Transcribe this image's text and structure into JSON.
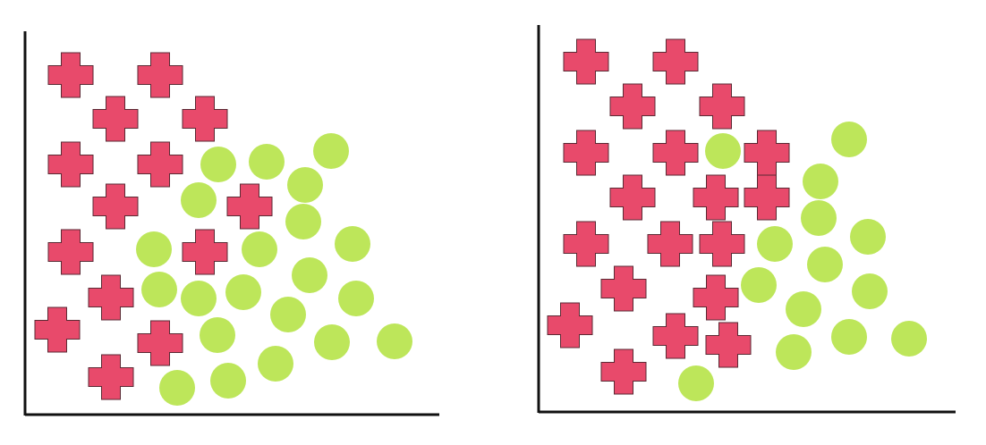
{
  "chart_data": [
    {
      "type": "scatter",
      "title": "",
      "xlabel": "",
      "ylabel": "",
      "grid": false,
      "legend": "none",
      "xlim": [
        0,
        460
      ],
      "ylim": [
        0,
        440
      ],
      "series": [
        {
          "marker": "cross",
          "color": "#e84a6b",
          "points": [
            [
              51,
              380
            ],
            [
              151,
              380
            ],
            [
              101,
              331
            ],
            [
              201,
              331
            ],
            [
              51,
              280
            ],
            [
              151,
              280
            ],
            [
              101,
              233
            ],
            [
              251,
              233
            ],
            [
              51,
              182
            ],
            [
              201,
              182
            ],
            [
              96,
              131
            ],
            [
              151,
              80
            ],
            [
              36,
              95
            ],
            [
              96,
              42
            ]
          ]
        },
        {
          "marker": "circle",
          "color": "#bde65a",
          "points": [
            [
              216,
              280
            ],
            [
              270,
              283
            ],
            [
              342,
              295
            ],
            [
              194,
              240
            ],
            [
              313,
              257
            ],
            [
              311,
              216
            ],
            [
              366,
              191
            ],
            [
              144,
              185
            ],
            [
              262,
              185
            ],
            [
              318,
              156
            ],
            [
              150,
              140
            ],
            [
              194,
              130
            ],
            [
              244,
              137
            ],
            [
              370,
              130
            ],
            [
              294,
              112
            ],
            [
              215,
              89
            ],
            [
              343,
              81
            ],
            [
              413,
              82
            ],
            [
              280,
              57
            ],
            [
              170,
              30
            ],
            [
              227,
              38
            ]
          ]
        }
      ]
    },
    {
      "type": "scatter",
      "title": "",
      "xlabel": "",
      "ylabel": "",
      "grid": false,
      "legend": "none",
      "xlim": [
        0,
        470
      ],
      "ylim": [
        0,
        440
      ],
      "series": [
        {
          "marker": "cross",
          "color": "#e84a6b",
          "points": [
            [
              53,
              392
            ],
            [
              153,
              392
            ],
            [
              105,
              342
            ],
            [
              205,
              342
            ],
            [
              53,
              290
            ],
            [
              153,
              290
            ],
            [
              255,
              290
            ],
            [
              105,
              240
            ],
            [
              198,
              240
            ],
            [
              255,
              240
            ],
            [
              53,
              188
            ],
            [
              147,
              188
            ],
            [
              205,
              188
            ],
            [
              95,
              138
            ],
            [
              198,
              128
            ],
            [
              35,
              97
            ],
            [
              153,
              85
            ],
            [
              212,
              75
            ],
            [
              95,
              45
            ]
          ]
        },
        {
          "marker": "circle",
          "color": "#bde65a",
          "points": [
            [
              206,
              292
            ],
            [
              347,
              305
            ],
            [
              315,
              258
            ],
            [
              313,
              217
            ],
            [
              368,
              196
            ],
            [
              264,
              188
            ],
            [
              320,
              165
            ],
            [
              246,
              142
            ],
            [
              370,
              135
            ],
            [
              296,
              115
            ],
            [
              414,
              82
            ],
            [
              347,
              84
            ],
            [
              285,
              67
            ],
            [
              176,
              32
            ]
          ]
        }
      ]
    }
  ]
}
